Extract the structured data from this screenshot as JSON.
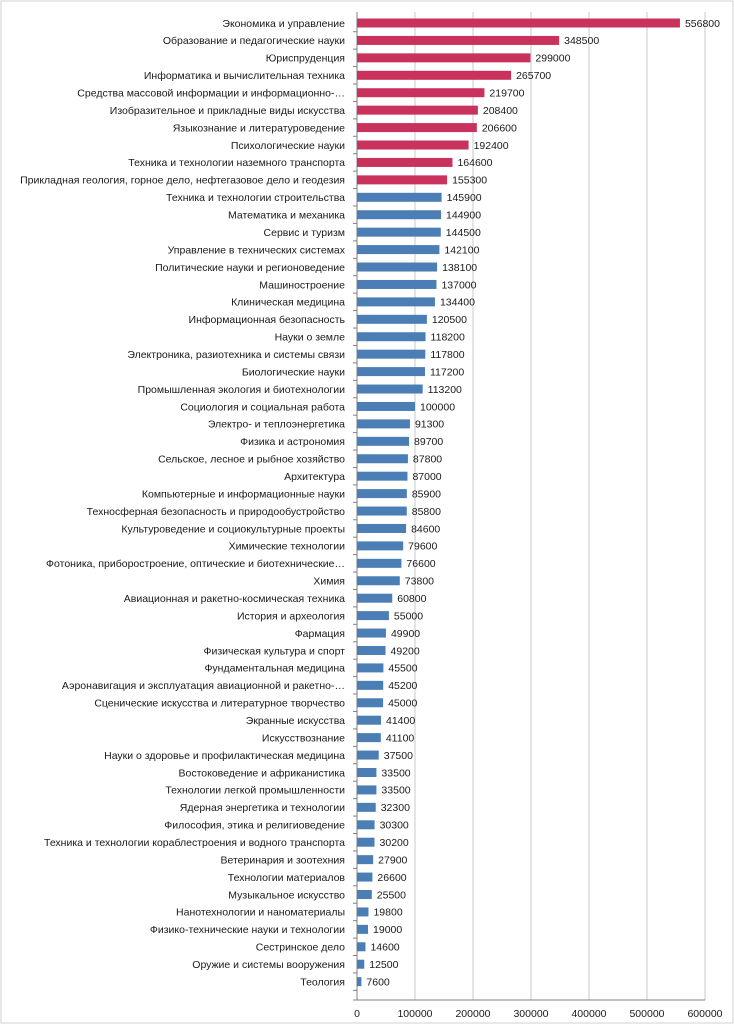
{
  "chart_data": {
    "type": "bar",
    "orientation": "horizontal",
    "title": "",
    "xlabel": "",
    "ylabel": "",
    "xlim": [
      0,
      600000
    ],
    "x_ticks": [
      0,
      100000,
      200000,
      300000,
      400000,
      500000,
      600000
    ],
    "grid": true,
    "legend": "none",
    "colors": {
      "highlight": "#c9325c",
      "default": "#4a7eb5"
    },
    "categories": [
      "Экономика и управление",
      "Образование и педагогические науки",
      "Юриспруденция",
      "Информатика и вычислительная техника",
      "Средства массовой информации и информационно-…",
      "Изобразительное и прикладные виды искусства",
      "Языкознание и литературоведение",
      "Психологические науки",
      "Техника и технологии наземного транспорта",
      "Прикладная геология, горное дело, нефтегазовое дело и геодезия",
      "Техника и технологии строительства",
      "Математика и механика",
      "Сервис и туризм",
      "Управление в технических системах",
      "Политические науки и регионоведение",
      "Машиностроение",
      "Клиническая медицина",
      "Информационная безопасность",
      "Науки о земле",
      "Электроника, разиотехника и системы связи",
      "Биологические науки",
      "Промышленная экология и биотехнологии",
      "Социология и социальная работа",
      "Электро- и теплоэнергетика",
      "Физика и астрономия",
      "Сельское, лесное и рыбное хозяйство",
      "Архитектура",
      "Компьютерные и информационные науки",
      "Техносферная безопасность и природообустройство",
      "Культуроведение и социокультурные проекты",
      "Химические технологии",
      "Фотоника, приборостроение, оптические и биотехнические…",
      "Химия",
      "Авиационная и ракетно-космическая техника",
      "История и археология",
      "Фармация",
      "Физическая культура и спорт",
      "Фундаментальная медицина",
      "Аэронавигация и эксплуатация авиационной и ракетно-…",
      "Сценические искусства и литературное творчество",
      "Экранные искусства",
      "Искусствознание",
      "Науки о здоровье и профилактическая медицина",
      "Востоковедение и африканистика",
      "Технологии легкой промышленности",
      "Ядерная энергетика и технологии",
      "Философия, этика и религиоведение",
      "Техника и технологии кораблестроения и водного транспорта",
      "Ветеринария и зоотехния",
      "Технологии материалов",
      "Музыкальное искусство",
      "Нанотехнологии и наноматериалы",
      "Физико-технические науки и технологии",
      "Сестринское дело",
      "Оружие и системы вооружения",
      "Теология"
    ],
    "values": [
      556800,
      348500,
      299000,
      265700,
      219700,
      208400,
      206600,
      192400,
      164600,
      155300,
      145900,
      144900,
      144500,
      142100,
      138100,
      137000,
      134400,
      120500,
      118200,
      117800,
      117200,
      113200,
      100000,
      91300,
      89700,
      87800,
      87000,
      85900,
      85800,
      84600,
      79600,
      76600,
      73800,
      60800,
      55000,
      49900,
      49200,
      45500,
      45200,
      45000,
      41400,
      41100,
      37500,
      33500,
      33500,
      32300,
      30300,
      30200,
      27900,
      26600,
      25500,
      19800,
      19000,
      14600,
      12500,
      7600
    ],
    "highlight_count": 10
  }
}
